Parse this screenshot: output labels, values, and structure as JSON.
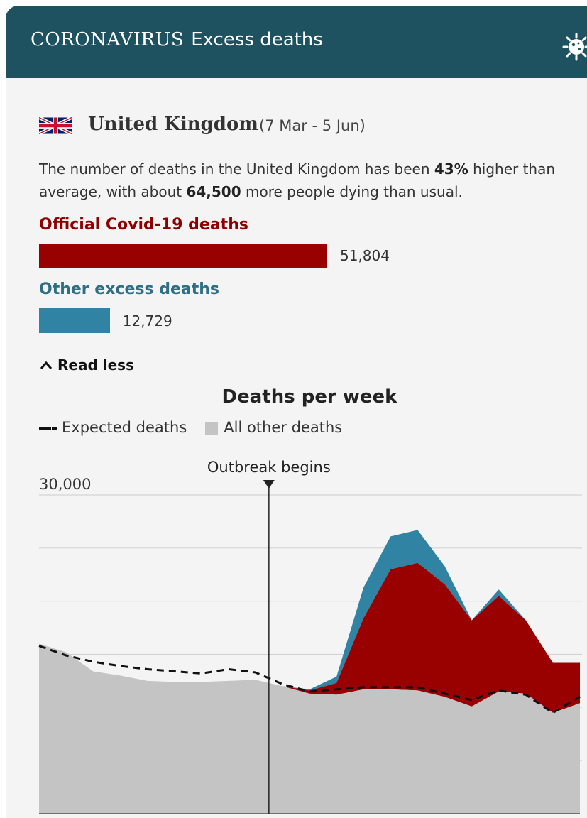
{
  "header": {
    "kicker": "CORONAVIRUS",
    "title": "Excess deaths",
    "icon": "virus-icon",
    "background": "#1f5261"
  },
  "country": {
    "name": "United Kingdom",
    "date_range": "(7 Mar - 5 Jun)",
    "flag_icon": "union-jack-flag-icon"
  },
  "summary": {
    "prefix": "The number of deaths in the United Kingdom has been ",
    "percent": "43%",
    "middle": " higher than average, with about ",
    "excess": "64,500",
    "suffix": " more people dying than usual."
  },
  "bars": {
    "covid": {
      "label": "Official Covid-19 deaths",
      "value": 51804,
      "value_text": "51,804",
      "color": "#990000"
    },
    "other": {
      "label": "Other excess deaths",
      "value": 12729,
      "value_text": "12,729",
      "color": "#3183a3"
    }
  },
  "toggle": {
    "label": "Read less",
    "icon": "chevron-up-icon"
  },
  "chart_data": {
    "type": "area",
    "title": "Deaths per week",
    "legend": [
      {
        "label": "Expected deaths",
        "style": "dashed-line"
      },
      {
        "label": "All other deaths",
        "color": "#c4c4c4"
      }
    ],
    "ytick_label": "30,000",
    "ylim": [
      0,
      30000
    ],
    "gridlines": [
      5000,
      10000,
      15000,
      20000,
      25000,
      30000
    ],
    "annotation": {
      "label": "Outbreak begins",
      "week_index": 8.5
    },
    "weeks": 21,
    "all_other_deaths": [
      16000,
      15200,
      13400,
      13000,
      12500,
      12400,
      12400,
      12500,
      12600,
      12000,
      11300,
      11200,
      11700,
      11700,
      11600,
      11000,
      10100,
      11500,
      11300,
      9500,
      10400
    ],
    "official_covid_deaths": [
      0,
      0,
      0,
      0,
      0,
      0,
      0,
      0,
      0,
      0,
      300,
      1100,
      6700,
      11300,
      12000,
      10600,
      8100,
      9000,
      6900,
      4700,
      3800
    ],
    "other_excess_deaths": [
      0,
      0,
      0,
      0,
      0,
      0,
      0,
      0,
      0,
      0,
      100,
      600,
      2900,
      3100,
      3100,
      1700,
      0,
      600,
      0,
      0,
      0
    ],
    "expected_deaths": [
      15800,
      14900,
      14300,
      13900,
      13600,
      13400,
      13200,
      13600,
      13300,
      12200,
      11500,
      11700,
      11900,
      11900,
      11900,
      11300,
      10700,
      11600,
      11200,
      9500,
      11000
    ],
    "colors": {
      "covid": "#990000",
      "other_excess": "#3183a3",
      "all_other": "#c4c4c4"
    }
  }
}
